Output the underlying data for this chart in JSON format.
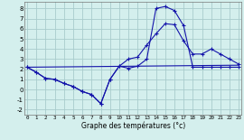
{
  "title": "Graphe des températures (°c)",
  "bg_color": "#d4efed",
  "grid_color": "#a8cccc",
  "line_color": "#1414aa",
  "xlim": [
    -0.3,
    23.3
  ],
  "ylim": [
    -2.5,
    8.7
  ],
  "xticks": [
    0,
    1,
    2,
    3,
    4,
    5,
    6,
    7,
    8,
    9,
    10,
    11,
    12,
    13,
    14,
    15,
    16,
    17,
    18,
    19,
    20,
    21,
    22,
    23
  ],
  "yticks": [
    -2,
    -1,
    0,
    1,
    2,
    3,
    4,
    5,
    6,
    7,
    8
  ],
  "line1_x": [
    0,
    1,
    2,
    3,
    4,
    5,
    6,
    7,
    8,
    9,
    10,
    11,
    12,
    13,
    14,
    15,
    16,
    17,
    18,
    19,
    20,
    21,
    22,
    23
  ],
  "line1_y": [
    2.2,
    1.7,
    1.1,
    1.0,
    0.6,
    0.3,
    -0.2,
    -0.5,
    -1.4,
    1.0,
    2.3,
    3.0,
    3.2,
    4.4,
    5.5,
    6.5,
    6.4,
    4.8,
    3.5,
    3.5,
    4.0,
    3.5,
    3.0,
    2.5
  ],
  "line2_x": [
    0,
    1,
    2,
    3,
    4,
    5,
    6,
    7,
    8,
    9,
    10,
    11,
    12,
    13,
    14,
    15,
    16,
    17,
    18,
    19,
    20,
    21,
    22,
    23
  ],
  "line2_y": [
    2.2,
    1.7,
    1.1,
    1.0,
    0.6,
    0.3,
    -0.2,
    -0.5,
    -1.4,
    1.0,
    2.3,
    2.1,
    2.3,
    3.0,
    8.0,
    8.2,
    7.8,
    6.3,
    2.2,
    2.2,
    2.2,
    2.2,
    2.2,
    2.2
  ],
  "line3_x": [
    0,
    23
  ],
  "line3_y": [
    2.2,
    2.4
  ]
}
